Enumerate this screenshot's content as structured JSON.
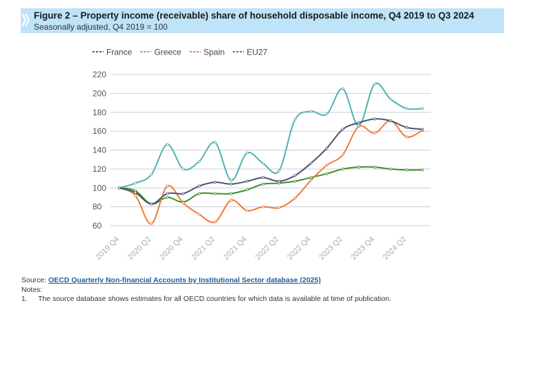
{
  "header": {
    "title": "Figure 2 – Property income (receivable) share of household disposable income, Q4 2019 to Q3 2024",
    "subtitle": "Seasonally adjusted, Q4 2019 = 100"
  },
  "chart_data": {
    "type": "line",
    "x": [
      "2019 Q4",
      "2020 Q1",
      "2020 Q2",
      "2020 Q3",
      "2020 Q4",
      "2021 Q1",
      "2021 Q2",
      "2021 Q3",
      "2021 Q4",
      "2022 Q1",
      "2022 Q2",
      "2022 Q3",
      "2022 Q4",
      "2023 Q1",
      "2023 Q2",
      "2023 Q3",
      "2023 Q4",
      "2024 Q1",
      "2024 Q2",
      "2024 Q3"
    ],
    "x_tick_labels": [
      "2019 Q4",
      "2020 Q2",
      "2020 Q4",
      "2021 Q2",
      "2021 Q4",
      "2022 Q2",
      "2022 Q4",
      "2023 Q2",
      "2023 Q4",
      "2024 Q2"
    ],
    "yticks": [
      60,
      80,
      100,
      120,
      140,
      160,
      180,
      200,
      220
    ],
    "ylim": [
      60,
      220
    ],
    "grid": true,
    "legend_position": "top-left",
    "series": [
      {
        "name": "France",
        "color": "#4a5273",
        "values": [
          100,
          95,
          83,
          94,
          94,
          102,
          106,
          104,
          107,
          111,
          107,
          113,
          126,
          142,
          162,
          169,
          173,
          171,
          164,
          162
        ]
      },
      {
        "name": "Greece",
        "color": "#4fb1b1",
        "values": [
          100,
          105,
          114,
          146,
          120,
          128,
          148,
          108,
          137,
          126,
          118,
          172,
          181,
          178,
          205,
          166,
          210,
          194,
          184,
          184
        ]
      },
      {
        "name": "Spain",
        "color": "#ee7b33",
        "values": [
          100,
          92,
          62,
          102,
          84,
          72,
          64,
          87,
          76,
          80,
          79,
          89,
          108,
          124,
          135,
          165,
          158,
          171,
          154,
          161
        ]
      },
      {
        "name": "EU27",
        "color": "#3f8f2a",
        "values": [
          100,
          97,
          83,
          90,
          85,
          94,
          94,
          94,
          98,
          104,
          105,
          107,
          111,
          115,
          120,
          122,
          122,
          120,
          119,
          119
        ]
      }
    ]
  },
  "footer": {
    "source_label": "Source:",
    "source_link": "OECD Quarterly Non-financial Accounts by Institutional Sector database (2025)",
    "notes_label": "Notes:",
    "note_number": "1.",
    "note_text": "The source database shows estimates for all OECD countries for which data is available at time of publication."
  }
}
